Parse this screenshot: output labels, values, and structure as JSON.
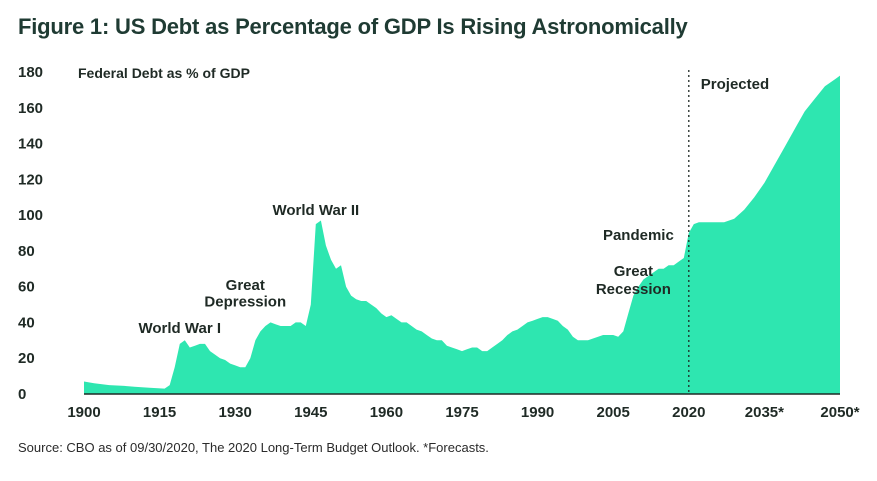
{
  "title": "Figure 1: US Debt as Percentage of GDP Is Rising Astronomically",
  "source": "Source: CBO as of 09/30/2020, The 2020 Long-Term Budget Outlook. *Forecasts.",
  "colors": {
    "fill": "#2ee6b0",
    "text": "#1f2a25",
    "title": "#1f3b33"
  },
  "chart_data": {
    "type": "area",
    "title": "Figure 1: US Debt as Percentage of GDP Is Rising Astronomically",
    "ylabel": "Federal Debt as % of GDP",
    "xlabel": "",
    "ylim": [
      0,
      180
    ],
    "yticks": [
      "0",
      "20",
      "40",
      "60",
      "80",
      "100",
      "120",
      "140",
      "160",
      "180"
    ],
    "xticks": [
      "1900",
      "1915",
      "1930",
      "1945",
      "1960",
      "1975",
      "1990",
      "2005",
      "2020",
      "2035*",
      "2050*"
    ],
    "grid": false,
    "projection_start": 2020,
    "projection_label": "Projected",
    "annotations": [
      {
        "text": "World War I",
        "x": 1919,
        "y": 34
      },
      {
        "text": "Great",
        "x": 1932,
        "y": 58
      },
      {
        "text": "Depression",
        "x": 1932,
        "y": 49
      },
      {
        "text": "World War II",
        "x": 1946,
        "y": 100
      },
      {
        "text": "Great",
        "x": 2009,
        "y": 66
      },
      {
        "text": "Recession",
        "x": 2009,
        "y": 56
      },
      {
        "text": "Pandemic",
        "x": 2010,
        "y": 86
      }
    ],
    "series": [
      {
        "x": [
          1900,
          1902,
          1905,
          1908,
          1910,
          1913,
          1916,
          1917,
          1918,
          1919,
          1920,
          1921,
          1922,
          1923,
          1924,
          1925,
          1926,
          1927,
          1928,
          1929,
          1930,
          1931,
          1932,
          1933,
          1934,
          1935,
          1936,
          1937,
          1938,
          1939,
          1940,
          1941,
          1942,
          1943,
          1944,
          1945,
          1946,
          1947,
          1948,
          1949,
          1950,
          1951,
          1952,
          1953,
          1954,
          1955,
          1956,
          1957,
          1958,
          1959,
          1960,
          1961,
          1962,
          1963,
          1964,
          1965,
          1966,
          1967,
          1968,
          1969,
          1970,
          1971,
          1972,
          1973,
          1974,
          1975,
          1976,
          1977,
          1978,
          1979,
          1980,
          1981,
          1982,
          1983,
          1984,
          1985,
          1986,
          1987,
          1988,
          1989,
          1990,
          1991,
          1992,
          1993,
          1994,
          1995,
          1996,
          1997,
          1998,
          1999,
          2000,
          2001,
          2002,
          2003,
          2004,
          2005,
          2006,
          2007,
          2008,
          2009,
          2010,
          2011,
          2012,
          2013,
          2014,
          2015,
          2016,
          2017,
          2018,
          2019,
          2020,
          2021,
          2022,
          2023,
          2025,
          2027,
          2029,
          2031,
          2033,
          2035,
          2037,
          2039,
          2041,
          2043,
          2045,
          2047,
          2049,
          2050
        ],
        "values": [
          7,
          6,
          5,
          4.5,
          4,
          3.5,
          3,
          5,
          15,
          28,
          30,
          26,
          27,
          28,
          28,
          24,
          22,
          20,
          19,
          17,
          16,
          15,
          15,
          20,
          30,
          35,
          38,
          40,
          39,
          38,
          38,
          38,
          40,
          40,
          38,
          50,
          95,
          97,
          83,
          75,
          70,
          72,
          60,
          55,
          53,
          52,
          52,
          50,
          48,
          45,
          43,
          44,
          42,
          40,
          40,
          38,
          36,
          35,
          33,
          31,
          30,
          30,
          27,
          26,
          25,
          24,
          25,
          26,
          26,
          24,
          24,
          26,
          28,
          30,
          33,
          35,
          36,
          38,
          40,
          41,
          42,
          43,
          43,
          42,
          41,
          38,
          36,
          32,
          30,
          30,
          30,
          31,
          32,
          33,
          33,
          33,
          32,
          35,
          45,
          55,
          60,
          64,
          66,
          68,
          70,
          70,
          72,
          72,
          74,
          76,
          90,
          95,
          96,
          96,
          96,
          96,
          98,
          103,
          110,
          118,
          128,
          138,
          148,
          158,
          165,
          172,
          176,
          178
        ]
      }
    ]
  }
}
